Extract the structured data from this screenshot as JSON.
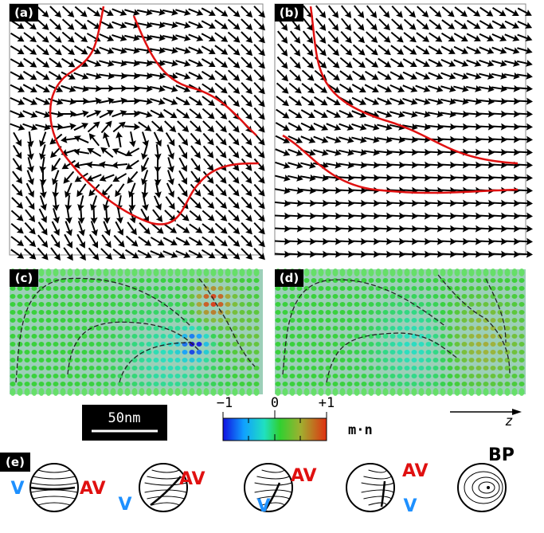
{
  "panels": {
    "a": "(a)",
    "b": "(b)",
    "c": "(c)",
    "d": "(d)",
    "e": "(e)"
  },
  "scale_bar": "50nm",
  "colorbar": {
    "ticks": [
      "−1",
      "0",
      "+1"
    ],
    "label": "m·n"
  },
  "axis_label": "z",
  "diagrams": [
    {
      "left": "V",
      "right": "AV"
    },
    {
      "left": "V",
      "right": "AV"
    },
    {
      "left": "V",
      "right": "AV"
    },
    {
      "left": "V",
      "right": "AV"
    },
    {
      "right": "BP"
    }
  ]
}
